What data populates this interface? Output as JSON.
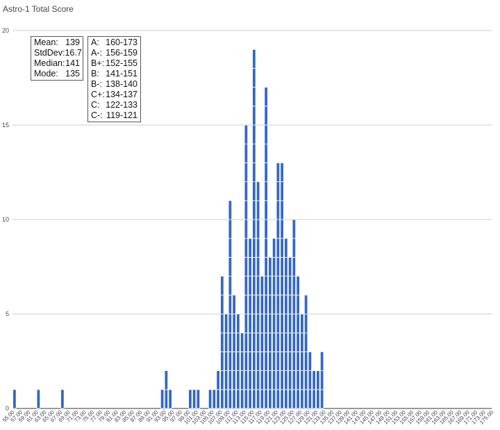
{
  "chart_data": {
    "type": "bar",
    "title": "Astro-1 Total Score",
    "xlabel": "",
    "ylabel": "",
    "ylim": [
      0,
      20
    ],
    "yticks": [
      0,
      5,
      10,
      15,
      20
    ],
    "grid": true,
    "bar_color": "#3366cc",
    "bin_start": 55,
    "bin_width": 1,
    "x_tick_labels": [
      "55.00",
      "57.00",
      "59.00",
      "61.00",
      "63.00",
      "65.00",
      "67.00",
      "69.00",
      "71.00",
      "73.00",
      "75.00",
      "77.00",
      "79.00",
      "81.00",
      "83.00",
      "85.00",
      "87.00",
      "89.00",
      "91.00",
      "93.00",
      "95.00",
      "97.00",
      "99.00",
      "101.00",
      "103.00",
      "105.00",
      "107.00",
      "109.00",
      "111.00",
      "113.00",
      "115.00",
      "117.00",
      "119.00",
      "121.00",
      "123.00",
      "125.00",
      "127.00",
      "129.00",
      "131.00",
      "133.00",
      "135.00",
      "137.00",
      "139.00",
      "141.00",
      "143.00",
      "145.00",
      "147.00",
      "149.00",
      "151.00",
      "153.00",
      "155.00",
      "157.00",
      "159.00",
      "161.00",
      "163.00",
      "165.00",
      "167.00",
      "169.00",
      "171.00",
      "173.00",
      "175.00"
    ],
    "values": [
      1,
      0,
      0,
      0,
      0,
      0,
      1,
      0,
      0,
      0,
      0,
      0,
      1,
      0,
      0,
      0,
      0,
      0,
      0,
      0,
      0,
      0,
      0,
      0,
      0,
      0,
      0,
      0,
      0,
      0,
      0,
      0,
      0,
      0,
      0,
      0,
      0,
      1,
      2,
      1,
      0,
      0,
      0,
      0,
      1,
      1,
      1,
      0,
      0,
      1,
      1,
      2,
      7,
      5,
      11,
      6,
      5,
      4,
      15,
      9,
      19,
      12,
      7,
      17,
      8,
      9,
      13,
      13,
      9,
      8,
      10,
      7,
      5,
      6,
      3,
      2,
      2,
      3
    ]
  },
  "summary": [
    {
      "label": "Mean:",
      "value": "139"
    },
    {
      "label": "StdDev:",
      "value": "16.7"
    },
    {
      "label": "Median:",
      "value": "141"
    },
    {
      "label": "Mode:",
      "value": "135"
    }
  ],
  "grades": [
    {
      "label": "A:",
      "value": "160-173"
    },
    {
      "label": "A-:",
      "value": "156-159"
    },
    {
      "label": "B+:",
      "value": "152-155"
    },
    {
      "label": "B:",
      "value": "141-151"
    },
    {
      "label": "B-:",
      "value": "138-140"
    },
    {
      "label": "C+:",
      "value": "134-137"
    },
    {
      "label": "C:",
      "value": "122-133"
    },
    {
      "label": "C-:",
      "value": "119-121"
    }
  ]
}
